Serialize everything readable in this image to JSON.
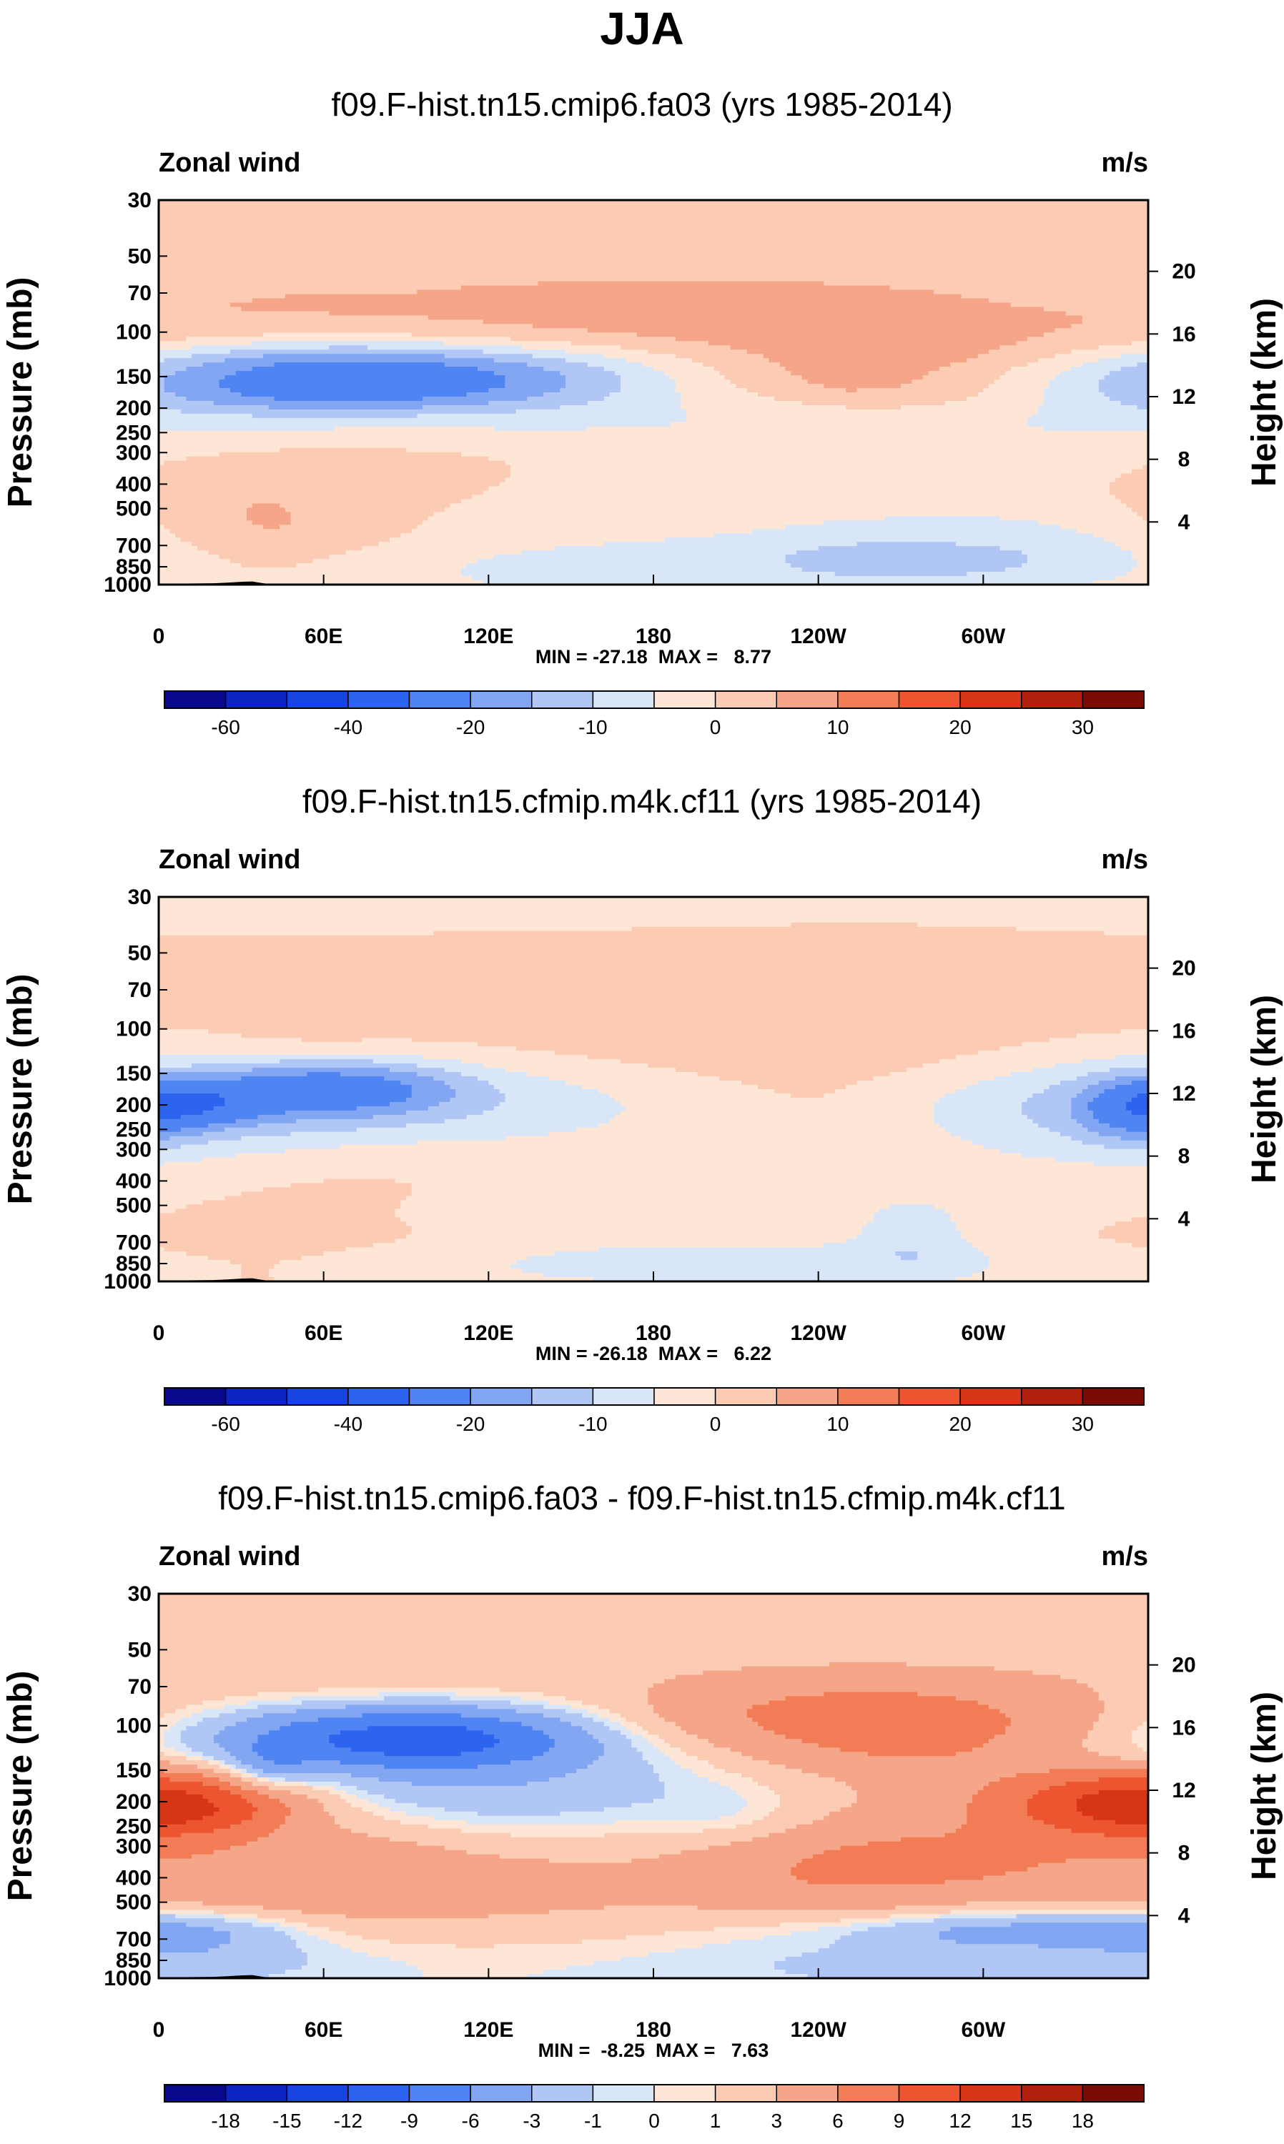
{
  "page": {
    "title": "JJA"
  },
  "colors": {
    "palette": [
      "#08088c",
      "#0c24c0",
      "#1744e0",
      "#2c64ee",
      "#4f84f2",
      "#82a6f2",
      "#b0c6f4",
      "#d8e6f8",
      "#fde6d6",
      "#fbcbb3",
      "#f6a688",
      "#f27c56",
      "#ec5530",
      "#d83418",
      "#b0200c",
      "#7a0c04"
    ],
    "topography": "#000000"
  },
  "chart_data": [
    {
      "type": "contour",
      "title": "f09.F-hist.tn15.cmip6.fa03 (yrs 1985-2014)",
      "left_label": "Zonal wind",
      "right_label": "m/s",
      "ylabel": "Pressure (mb)",
      "ylabel_right": "Height (km)",
      "x_ticks": [
        "0",
        "60E",
        "120E",
        "180",
        "120W",
        "60W"
      ],
      "x_tick_values": [
        0,
        60,
        120,
        180,
        240,
        300
      ],
      "xlim": [
        0,
        360
      ],
      "y_ticks": [
        "30",
        "50",
        "70",
        "100",
        "150",
        "200",
        "250",
        "300",
        "400",
        "500",
        "700",
        "850",
        "1000"
      ],
      "y_tick_values": [
        30,
        50,
        70,
        100,
        150,
        200,
        250,
        300,
        400,
        500,
        700,
        850,
        1000
      ],
      "ylim": [
        1000,
        30
      ],
      "height_ticks": [
        "4",
        "8",
        "12",
        "16",
        "20"
      ],
      "height_tick_values": [
        4,
        8,
        12,
        16,
        20
      ],
      "stats": "MIN = -27.18  MAX =   8.77",
      "colorbar_labels": [
        "-60",
        "-40",
        "-20",
        "-10",
        "0",
        "10",
        "20",
        "30"
      ],
      "colorbar_levels": [
        -70,
        -60,
        -50,
        -40,
        -30,
        -20,
        -15,
        -10,
        -5,
        0,
        5,
        10,
        15,
        20,
        25,
        30
      ],
      "blobs": [
        [
          110,
          330,
          700,
          200,
          1,
          0.9
        ],
        [
          190,
          130,
          215,
          20,
          -2.5,
          0.75
        ],
        [
          80,
          330,
          300,
          560,
          -1.5,
          0.8
        ],
        [
          150,
          60,
          355,
          180,
          3,
          0.9
        ],
        [
          130,
          100,
          250,
          120,
          1.6,
          0.75
        ],
        [
          120,
          170,
          250,
          90,
          -3.5,
          0.8
        ],
        [
          90,
          210,
          230,
          50,
          -5,
          0.8
        ],
        [
          70,
          150,
          140,
          42,
          -11,
          0.8
        ],
        [
          66,
          150,
          100,
          35,
          -15,
          0.8
        ],
        [
          50,
          500,
          80,
          900,
          2.4,
          0.7
        ],
        [
          80,
          800,
          170,
          170,
          2.4,
          0.8
        ],
        [
          45,
          450,
          40,
          120,
          1,
          0.7
        ],
        [
          35,
          620,
          35,
          220,
          4,
          0.7
        ],
        [
          270,
          145,
          260,
          150,
          3,
          0.8
        ],
        [
          225,
          140,
          160,
          55,
          4,
          0.9
        ],
        [
          300,
          150,
          100,
          40,
          7,
          0.8
        ],
        [
          270,
          290,
          120,
          160,
          -3,
          0.8
        ],
        [
          250,
          780,
          440,
          620,
          -3,
          0.8
        ],
        [
          220,
          840,
          230,
          150,
          -5,
          0.8
        ],
        [
          295,
          700,
          75,
          190,
          -6,
          0.8
        ],
        [
          200,
          1000,
          140,
          350,
          -1.5,
          0.8
        ],
        [
          330,
          540,
          130,
          470,
          2,
          0.8
        ],
        [
          345,
          190,
          80,
          220,
          -1.5,
          0.8
        ]
      ],
      "topography": [
        [
          10,
          990
        ],
        [
          20,
          988
        ],
        [
          25,
          982
        ],
        [
          30,
          975
        ],
        [
          34,
          972
        ],
        [
          37,
          984
        ],
        [
          40,
          994
        ],
        [
          100,
          996
        ],
        [
          284,
          994
        ],
        [
          290,
          990
        ],
        [
          300,
          993
        ],
        [
          310,
          996
        ]
      ]
    },
    {
      "type": "contour",
      "title": "f09.F-hist.tn15.cfmip.m4k.cf11 (yrs 1985-2014)",
      "left_label": "Zonal wind",
      "right_label": "m/s",
      "ylabel": "Pressure (mb)",
      "ylabel_right": "Height (km)",
      "x_ticks": [
        "0",
        "60E",
        "120E",
        "180",
        "120W",
        "60W"
      ],
      "x_tick_values": [
        0,
        60,
        120,
        180,
        240,
        300
      ],
      "xlim": [
        0,
        360
      ],
      "y_ticks": [
        "30",
        "50",
        "70",
        "100",
        "150",
        "200",
        "250",
        "300",
        "400",
        "500",
        "700",
        "850",
        "1000"
      ],
      "y_tick_values": [
        30,
        50,
        70,
        100,
        150,
        200,
        250,
        300,
        400,
        500,
        700,
        850,
        1000
      ],
      "ylim": [
        1000,
        30
      ],
      "height_ticks": [
        "4",
        "8",
        "12",
        "16",
        "20"
      ],
      "height_tick_values": [
        4,
        8,
        12,
        16,
        20
      ],
      "stats": "MIN = -26.18  MAX =   6.22",
      "colorbar_labels": [
        "-60",
        "-40",
        "-20",
        "-10",
        "0",
        "10",
        "20",
        "30"
      ],
      "colorbar_levels": [
        -70,
        -60,
        -50,
        -40,
        -30,
        -20,
        -15,
        -10,
        -5,
        0,
        5,
        10,
        15,
        20,
        25,
        30
      ],
      "blobs": [
        [
          210,
          120,
          260,
          60,
          1.4,
          0.8
        ],
        [
          55,
          110,
          30,
          25,
          1.2,
          0.7
        ],
        [
          80,
          330,
          360,
          520,
          -1.5,
          0.8
        ],
        [
          60,
          180,
          140,
          100,
          -4,
          0.8
        ],
        [
          55,
          195,
          120,
          70,
          -8,
          0.8
        ],
        [
          65,
          170,
          45,
          32,
          -14,
          0.75
        ],
        [
          12,
          200,
          25,
          25,
          -12,
          0.7
        ],
        [
          55,
          520,
          70,
          900,
          2.4,
          0.7
        ],
        [
          85,
          800,
          170,
          170,
          2.2,
          0.8
        ],
        [
          255,
          160,
          260,
          110,
          3,
          0.8
        ],
        [
          255,
          200,
          160,
          120,
          -1,
          0.7
        ],
        [
          350,
          230,
          70,
          200,
          -5,
          0.8
        ],
        [
          355,
          210,
          20,
          60,
          -9,
          0.7
        ],
        [
          240,
          850,
          470,
          520,
          -3,
          0.8
        ],
        [
          215,
          850,
          170,
          110,
          -5,
          0.8
        ],
        [
          275,
          640,
          20,
          200,
          -6,
          0.7
        ],
        [
          340,
          650,
          90,
          500,
          2.4,
          0.7
        ]
      ],
      "topography": [
        [
          10,
          990
        ],
        [
          20,
          988
        ],
        [
          25,
          982
        ],
        [
          30,
          975
        ],
        [
          34,
          972
        ],
        [
          37,
          984
        ],
        [
          40,
          994
        ],
        [
          100,
          996
        ],
        [
          284,
          994
        ],
        [
          290,
          990
        ],
        [
          300,
          993
        ],
        [
          310,
          996
        ]
      ]
    },
    {
      "type": "contour",
      "title": "f09.F-hist.tn15.cmip6.fa03 - f09.F-hist.tn15.cfmip.m4k.cf11",
      "left_label": "Zonal wind",
      "right_label": "m/s",
      "ylabel": "Pressure (mb)",
      "ylabel_right": "Height (km)",
      "x_ticks": [
        "0",
        "60E",
        "120E",
        "180",
        "120W",
        "60W"
      ],
      "x_tick_values": [
        0,
        60,
        120,
        180,
        240,
        300
      ],
      "xlim": [
        0,
        360
      ],
      "y_ticks": [
        "30",
        "50",
        "70",
        "100",
        "150",
        "200",
        "250",
        "300",
        "400",
        "500",
        "700",
        "850",
        "1000"
      ],
      "y_tick_values": [
        30,
        50,
        70,
        100,
        150,
        200,
        250,
        300,
        400,
        500,
        700,
        850,
        1000
      ],
      "ylim": [
        1000,
        30
      ],
      "height_ticks": [
        "4",
        "8",
        "12",
        "16",
        "20"
      ],
      "height_tick_values": [
        4,
        8,
        12,
        16,
        20
      ],
      "stats": "MIN =  -8.25  MAX =   7.63",
      "colorbar_labels": [
        "-18",
        "-15",
        "-12",
        "-9",
        "-6",
        "-3",
        "-1",
        "0",
        "1",
        "3",
        "6",
        "9",
        "12",
        "15",
        "18"
      ],
      "colorbar_levels": [
        -21,
        -18,
        -15,
        -12,
        -9,
        -6,
        -3,
        -1,
        0,
        1,
        3,
        6,
        9,
        12,
        15,
        18
      ],
      "blobs": [
        [
          180,
          40,
          700,
          70,
          2,
          0.9
        ],
        [
          260,
          100,
          190,
          35,
          -3.2,
          0.8
        ],
        [
          90,
          130,
          170,
          70,
          -1.8,
          0.8
        ],
        [
          110,
          160,
          130,
          90,
          -3.5,
          0.8
        ],
        [
          90,
          110,
          65,
          25,
          -7.5,
          0.8
        ],
        [
          40,
          150,
          15,
          20,
          -3.5,
          0.7
        ],
        [
          25,
          300,
          110,
          220,
          3,
          0.8
        ],
        [
          10,
          200,
          45,
          45,
          6,
          0.75
        ],
        [
          110,
          550,
          130,
          320,
          3.5,
          0.8
        ],
        [
          270,
          110,
          200,
          70,
          3.2,
          0.8
        ],
        [
          255,
          100,
          90,
          35,
          7,
          0.8
        ],
        [
          300,
          250,
          140,
          240,
          2.6,
          0.8
        ],
        [
          350,
          200,
          50,
          60,
          5,
          0.8
        ],
        [
          255,
          380,
          60,
          160,
          3.5,
          0.8
        ],
        [
          290,
          750,
          310,
          260,
          -2,
          0.8
        ],
        [
          330,
          640,
          70,
          60,
          -3.5,
          0.8
        ],
        [
          210,
          230,
          25,
          40,
          -1.2,
          0.7
        ],
        [
          15,
          700,
          40,
          200,
          -2.2,
          0.8
        ],
        [
          70,
          800,
          60,
          80,
          -0.5,
          0.7
        ]
      ],
      "topography": [
        [
          10,
          990
        ],
        [
          20,
          988
        ],
        [
          25,
          982
        ],
        [
          30,
          975
        ],
        [
          34,
          972
        ],
        [
          37,
          984
        ],
        [
          40,
          994
        ],
        [
          100,
          996
        ],
        [
          284,
          994
        ],
        [
          290,
          990
        ],
        [
          300,
          993
        ],
        [
          310,
          996
        ]
      ]
    }
  ]
}
